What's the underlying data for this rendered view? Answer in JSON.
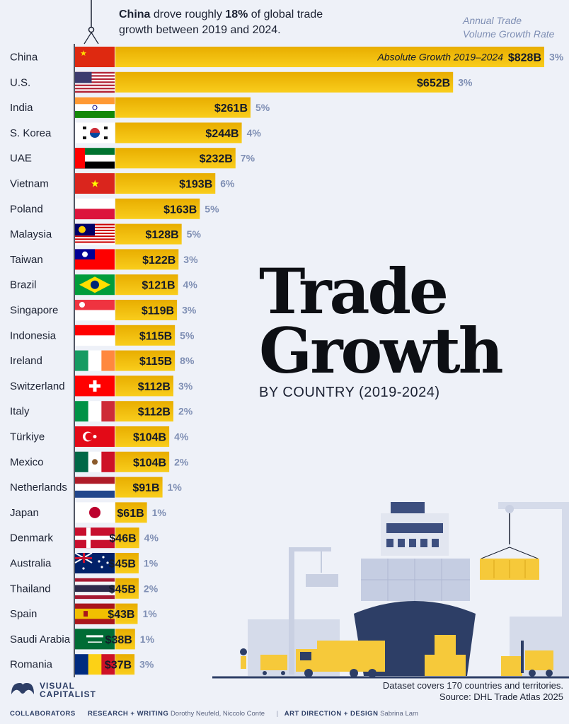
{
  "headline": {
    "bold_country": "China",
    "text_1": " drove roughly ",
    "bold_pct": "18%",
    "text_2": " of global trade growth between 2019 and 2024."
  },
  "legend_note": {
    "line1": "Annual Trade",
    "line2": "Volume Growth Rate"
  },
  "annotation": "Absolute Growth 2019–2024",
  "title": {
    "line1": "Trade",
    "line2": "Growth",
    "subtitle": "BY COUNTRY (2019-2024)"
  },
  "footer": {
    "line1": "Dataset covers 170 countries and territories.",
    "line2": "Source: DHL Trade Atlas 2025"
  },
  "brand": {
    "line1": "VISUAL",
    "line2": "CAPITALIST"
  },
  "credits": {
    "label": "COLLABORATORS",
    "research_key": "RESEARCH + WRITING",
    "research_val": "Dorothy Neufeld, Niccolo Conte",
    "design_key": "ART DIRECTION + DESIGN",
    "design_val": "Sabrina Lam"
  },
  "colors": {
    "bar_top": "#e8ad00",
    "bar_bottom": "#f9cd1c",
    "rate": "#7f8fb4",
    "background": "#eef1f8"
  },
  "chart_data": {
    "type": "bar",
    "orientation": "horizontal",
    "value_unit": "$B",
    "categories": [
      "China",
      "U.S.",
      "India",
      "S. Korea",
      "UAE",
      "Vietnam",
      "Poland",
      "Malaysia",
      "Taiwan",
      "Brazil",
      "Singapore",
      "Indonesia",
      "Ireland",
      "Switzerland",
      "Italy",
      "Türkiye",
      "Mexico",
      "Netherlands",
      "Japan",
      "Denmark",
      "Australia",
      "Thailand",
      "Spain",
      "Saudi Arabia",
      "Romania"
    ],
    "series": [
      {
        "name": "Absolute Growth 2019–2024",
        "values": [
          828,
          652,
          261,
          244,
          232,
          193,
          163,
          128,
          122,
          121,
          119,
          115,
          115,
          112,
          112,
          104,
          104,
          91,
          61,
          46,
          45,
          45,
          43,
          38,
          37
        ],
        "labels": [
          "$828B",
          "$652B",
          "$261B",
          "$244B",
          "$232B",
          "$193B",
          "$163B",
          "$128B",
          "$122B",
          "$121B",
          "$119B",
          "$115B",
          "$115B",
          "$112B",
          "$112B",
          "$104B",
          "$104B",
          "$91B",
          "$61B",
          "$46B",
          "$45B",
          "$45B",
          "$43B",
          "$38B",
          "$37B"
        ]
      },
      {
        "name": "Annual Trade Volume Growth Rate",
        "values": [
          3,
          3,
          5,
          4,
          7,
          6,
          5,
          5,
          3,
          4,
          3,
          5,
          8,
          3,
          2,
          4,
          2,
          1,
          1,
          4,
          1,
          2,
          1,
          1,
          3
        ],
        "labels": [
          "3%",
          "3%",
          "5%",
          "4%",
          "7%",
          "6%",
          "5%",
          "5%",
          "3%",
          "4%",
          "3%",
          "5%",
          "8%",
          "3%",
          "2%",
          "4%",
          "2%",
          "1%",
          "1%",
          "4%",
          "1%",
          "2%",
          "1%",
          "1%",
          "3%"
        ]
      }
    ],
    "flags": [
      "china",
      "usa",
      "india",
      "south-korea",
      "uae",
      "vietnam",
      "poland",
      "malaysia",
      "taiwan",
      "brazil",
      "singapore",
      "indonesia",
      "ireland",
      "switzerland",
      "italy",
      "turkiye",
      "mexico",
      "netherlands",
      "japan",
      "denmark",
      "australia",
      "thailand",
      "spain",
      "saudi-arabia",
      "romania"
    ]
  }
}
